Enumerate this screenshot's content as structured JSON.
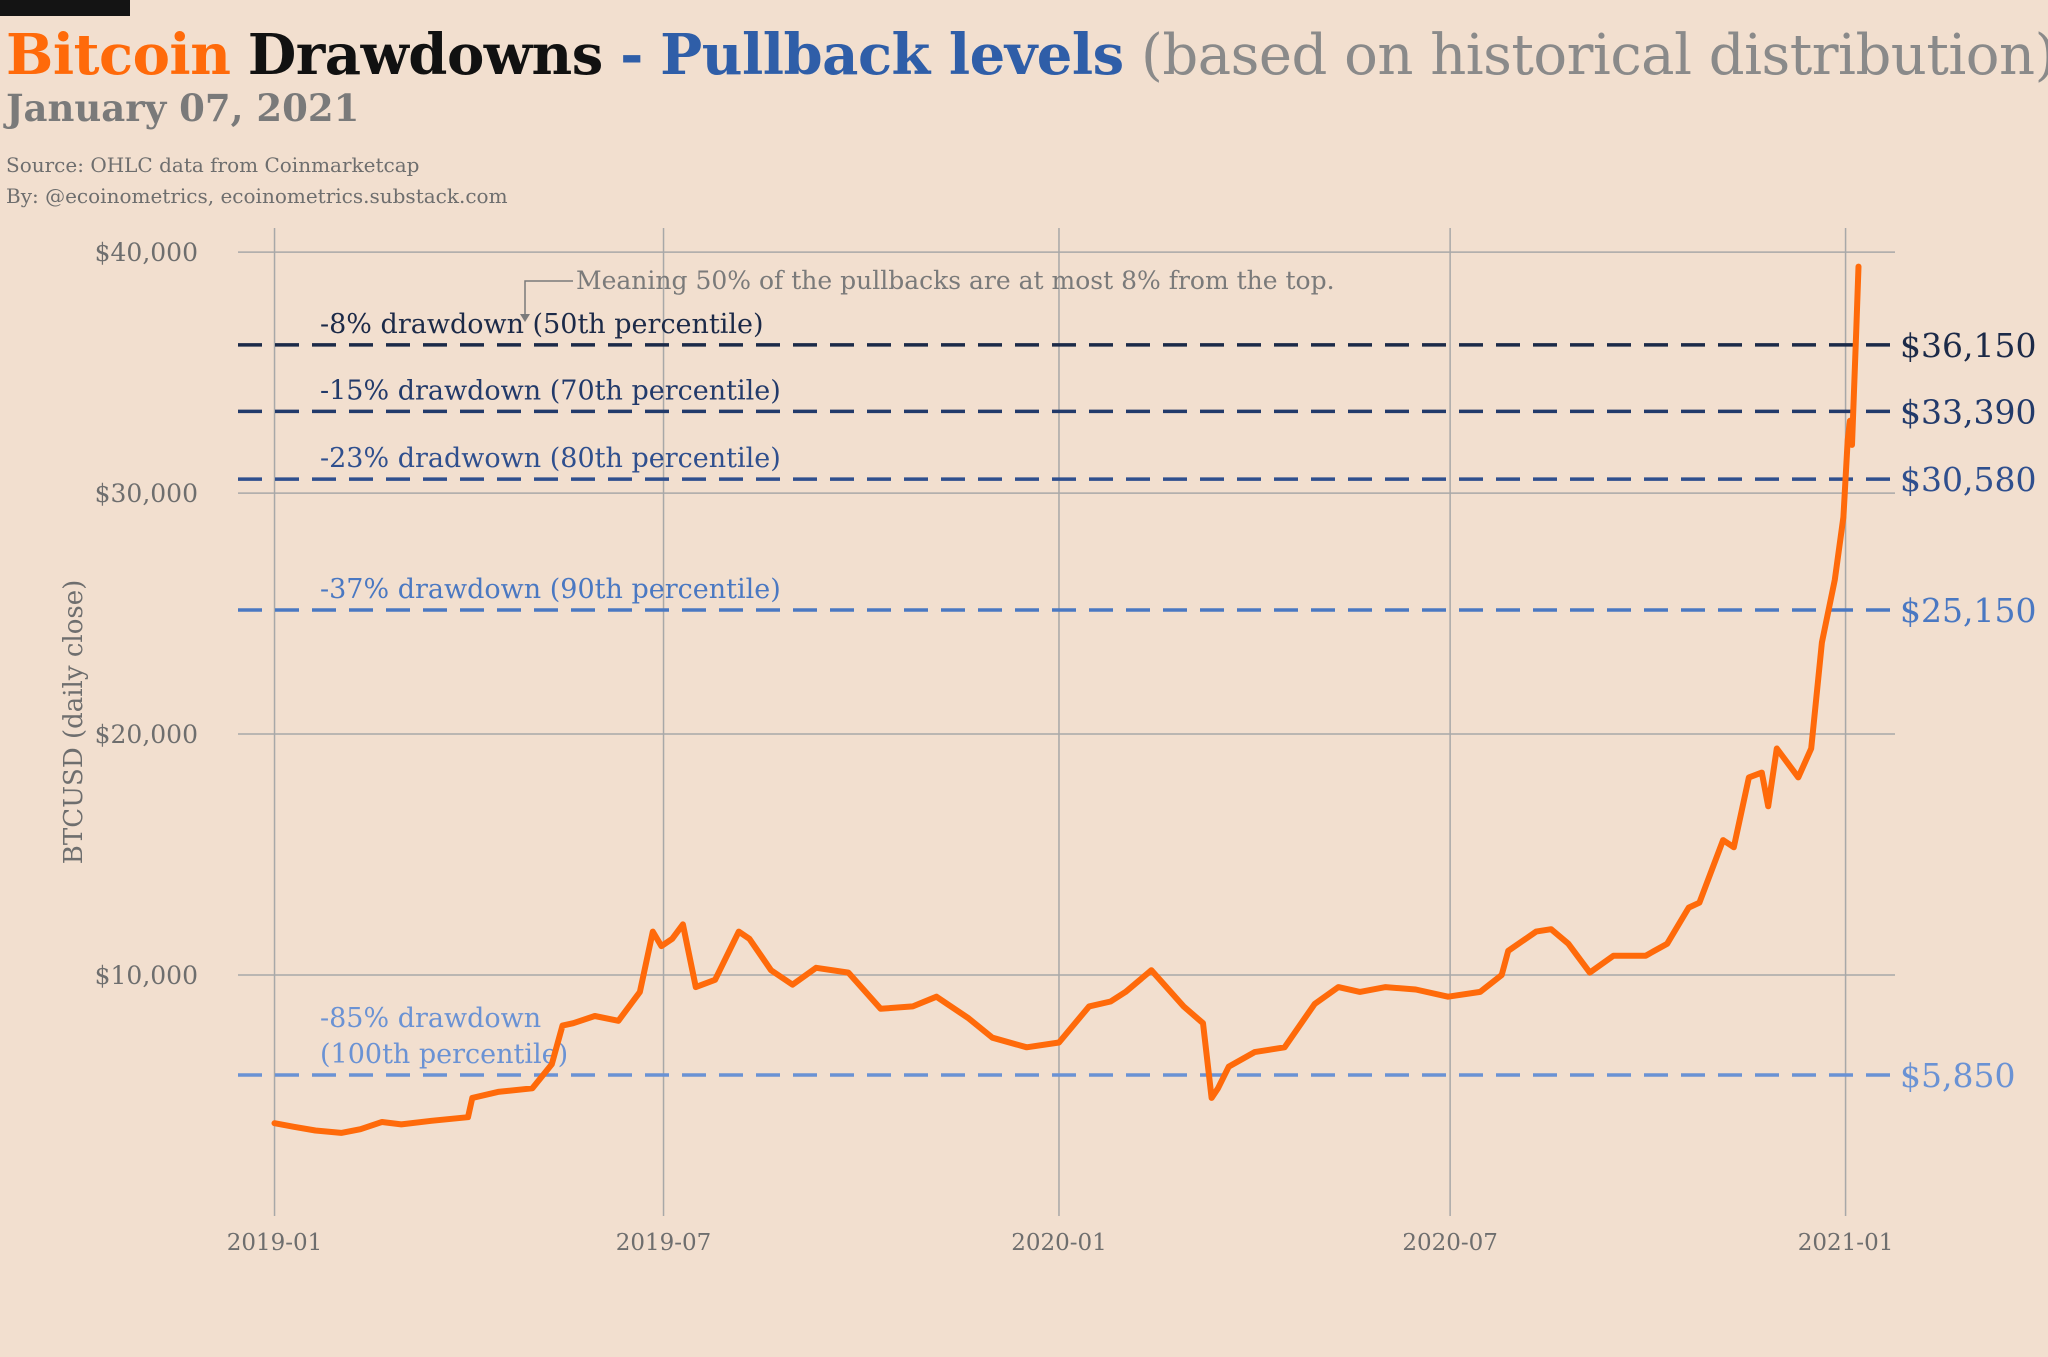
{
  "header": {
    "title_word1": "Bitcoin",
    "title_word2": "Drawdowns",
    "title_sep": "-",
    "title_word3": "Pullback levels",
    "title_rest": "(based on historical distribution)",
    "date": "January 07, 2021",
    "source": "Source: OHLC data from Coinmarketcap",
    "byline": "By: @ecoinometrics, ecoinometrics.substack.com"
  },
  "colors": {
    "background": "#f2dfcf",
    "bitcoin_orange": "#ff6a0a",
    "title_blue": "#2f5ea8",
    "grid": "#a8a8a8",
    "level_colors": [
      "#1c2a48",
      "#223a6a",
      "#2f4f8e",
      "#4a78c2",
      "#6a92d4"
    ]
  },
  "chart_data": {
    "type": "line",
    "ylabel": "BTCUSD (daily close)",
    "ylim": [
      0,
      41000
    ],
    "yticks": [
      10000,
      20000,
      30000,
      40000
    ],
    "ytick_labels": [
      "$10,000",
      "$20,000",
      "$30,000",
      "$40,000"
    ],
    "xlim": [
      "2018-12-15",
      "2021-01-24"
    ],
    "xticks": [
      "2019-01-01",
      "2019-07-01",
      "2020-01-01",
      "2020-07-01",
      "2021-01-01"
    ],
    "xtick_labels": [
      "2019-01",
      "2019-07",
      "2020-01",
      "2020-07",
      "2021-01"
    ],
    "grid": true,
    "series": [
      {
        "x": [
          "2019-01-01",
          "2019-01-10",
          "2019-01-20",
          "2019-02-01",
          "2019-02-10",
          "2019-02-20",
          "2019-03-01",
          "2019-03-15",
          "2019-04-01",
          "2019-04-03",
          "2019-04-15",
          "2019-05-01",
          "2019-05-10",
          "2019-05-15",
          "2019-05-20",
          "2019-05-30",
          "2019-06-10",
          "2019-06-20",
          "2019-06-26",
          "2019-06-30",
          "2019-07-05",
          "2019-07-10",
          "2019-07-16",
          "2019-07-25",
          "2019-08-05",
          "2019-08-10",
          "2019-08-20",
          "2019-08-30",
          "2019-09-10",
          "2019-09-25",
          "2019-10-10",
          "2019-10-25",
          "2019-11-05",
          "2019-11-20",
          "2019-12-01",
          "2019-12-17",
          "2020-01-01",
          "2020-01-15",
          "2020-01-25",
          "2020-02-01",
          "2020-02-13",
          "2020-02-28",
          "2020-03-08",
          "2020-03-12",
          "2020-03-15",
          "2020-03-20",
          "2020-04-01",
          "2020-04-15",
          "2020-04-29",
          "2020-05-10",
          "2020-05-20",
          "2020-06-01",
          "2020-06-15",
          "2020-06-30",
          "2020-07-15",
          "2020-07-25",
          "2020-07-28",
          "2020-08-10",
          "2020-08-17",
          "2020-08-25",
          "2020-09-04",
          "2020-09-15",
          "2020-09-30",
          "2020-10-10",
          "2020-10-20",
          "2020-10-25",
          "2020-11-05",
          "2020-11-10",
          "2020-11-17",
          "2020-11-23",
          "2020-11-26",
          "2020-11-30",
          "2020-12-10",
          "2020-12-16",
          "2020-12-21",
          "2020-12-27",
          "2020-12-31",
          "2021-01-02",
          "2021-01-03",
          "2021-01-04",
          "2021-01-06",
          "2021-01-07"
        ],
        "y": [
          3850,
          3700,
          3550,
          3450,
          3600,
          3900,
          3800,
          3950,
          4100,
          4900,
          5150,
          5300,
          6300,
          7900,
          8000,
          8300,
          8100,
          9300,
          11800,
          11200,
          11500,
          12100,
          9500,
          9800,
          11800,
          11500,
          10200,
          9600,
          10300,
          10100,
          8600,
          8700,
          9100,
          8200,
          7400,
          7000,
          7200,
          8700,
          8900,
          9300,
          10200,
          8700,
          8000,
          4900,
          5300,
          6200,
          6800,
          7000,
          8800,
          9500,
          9300,
          9500,
          9400,
          9100,
          9300,
          10000,
          11000,
          11800,
          11900,
          11300,
          10100,
          10800,
          10800,
          11300,
          12800,
          13000,
          15600,
          15300,
          18200,
          18400,
          17000,
          19400,
          18200,
          19400,
          23800,
          26400,
          29000,
          32200,
          33000,
          32000,
          36800,
          39400
        ]
      }
    ],
    "levels": [
      {
        "value": 36150,
        "label": "-8% drawdown (50th percentile)",
        "price_label": "$36,150"
      },
      {
        "value": 33390,
        "label": "-15% drawdown (70th percentile)",
        "price_label": "$33,390"
      },
      {
        "value": 30580,
        "label": "-23% dradwown (80th percentile)",
        "price_label": "$30,580"
      },
      {
        "value": 25150,
        "label": "-37% drawdown (90th percentile)",
        "price_label": "$25,150"
      },
      {
        "value": 5850,
        "label": [
          "-85% drawdown",
          "(100th percentile)"
        ],
        "price_label": "$5,850"
      }
    ],
    "annotation": "Meaning 50% of the pullbacks are at most 8% from the top."
  }
}
